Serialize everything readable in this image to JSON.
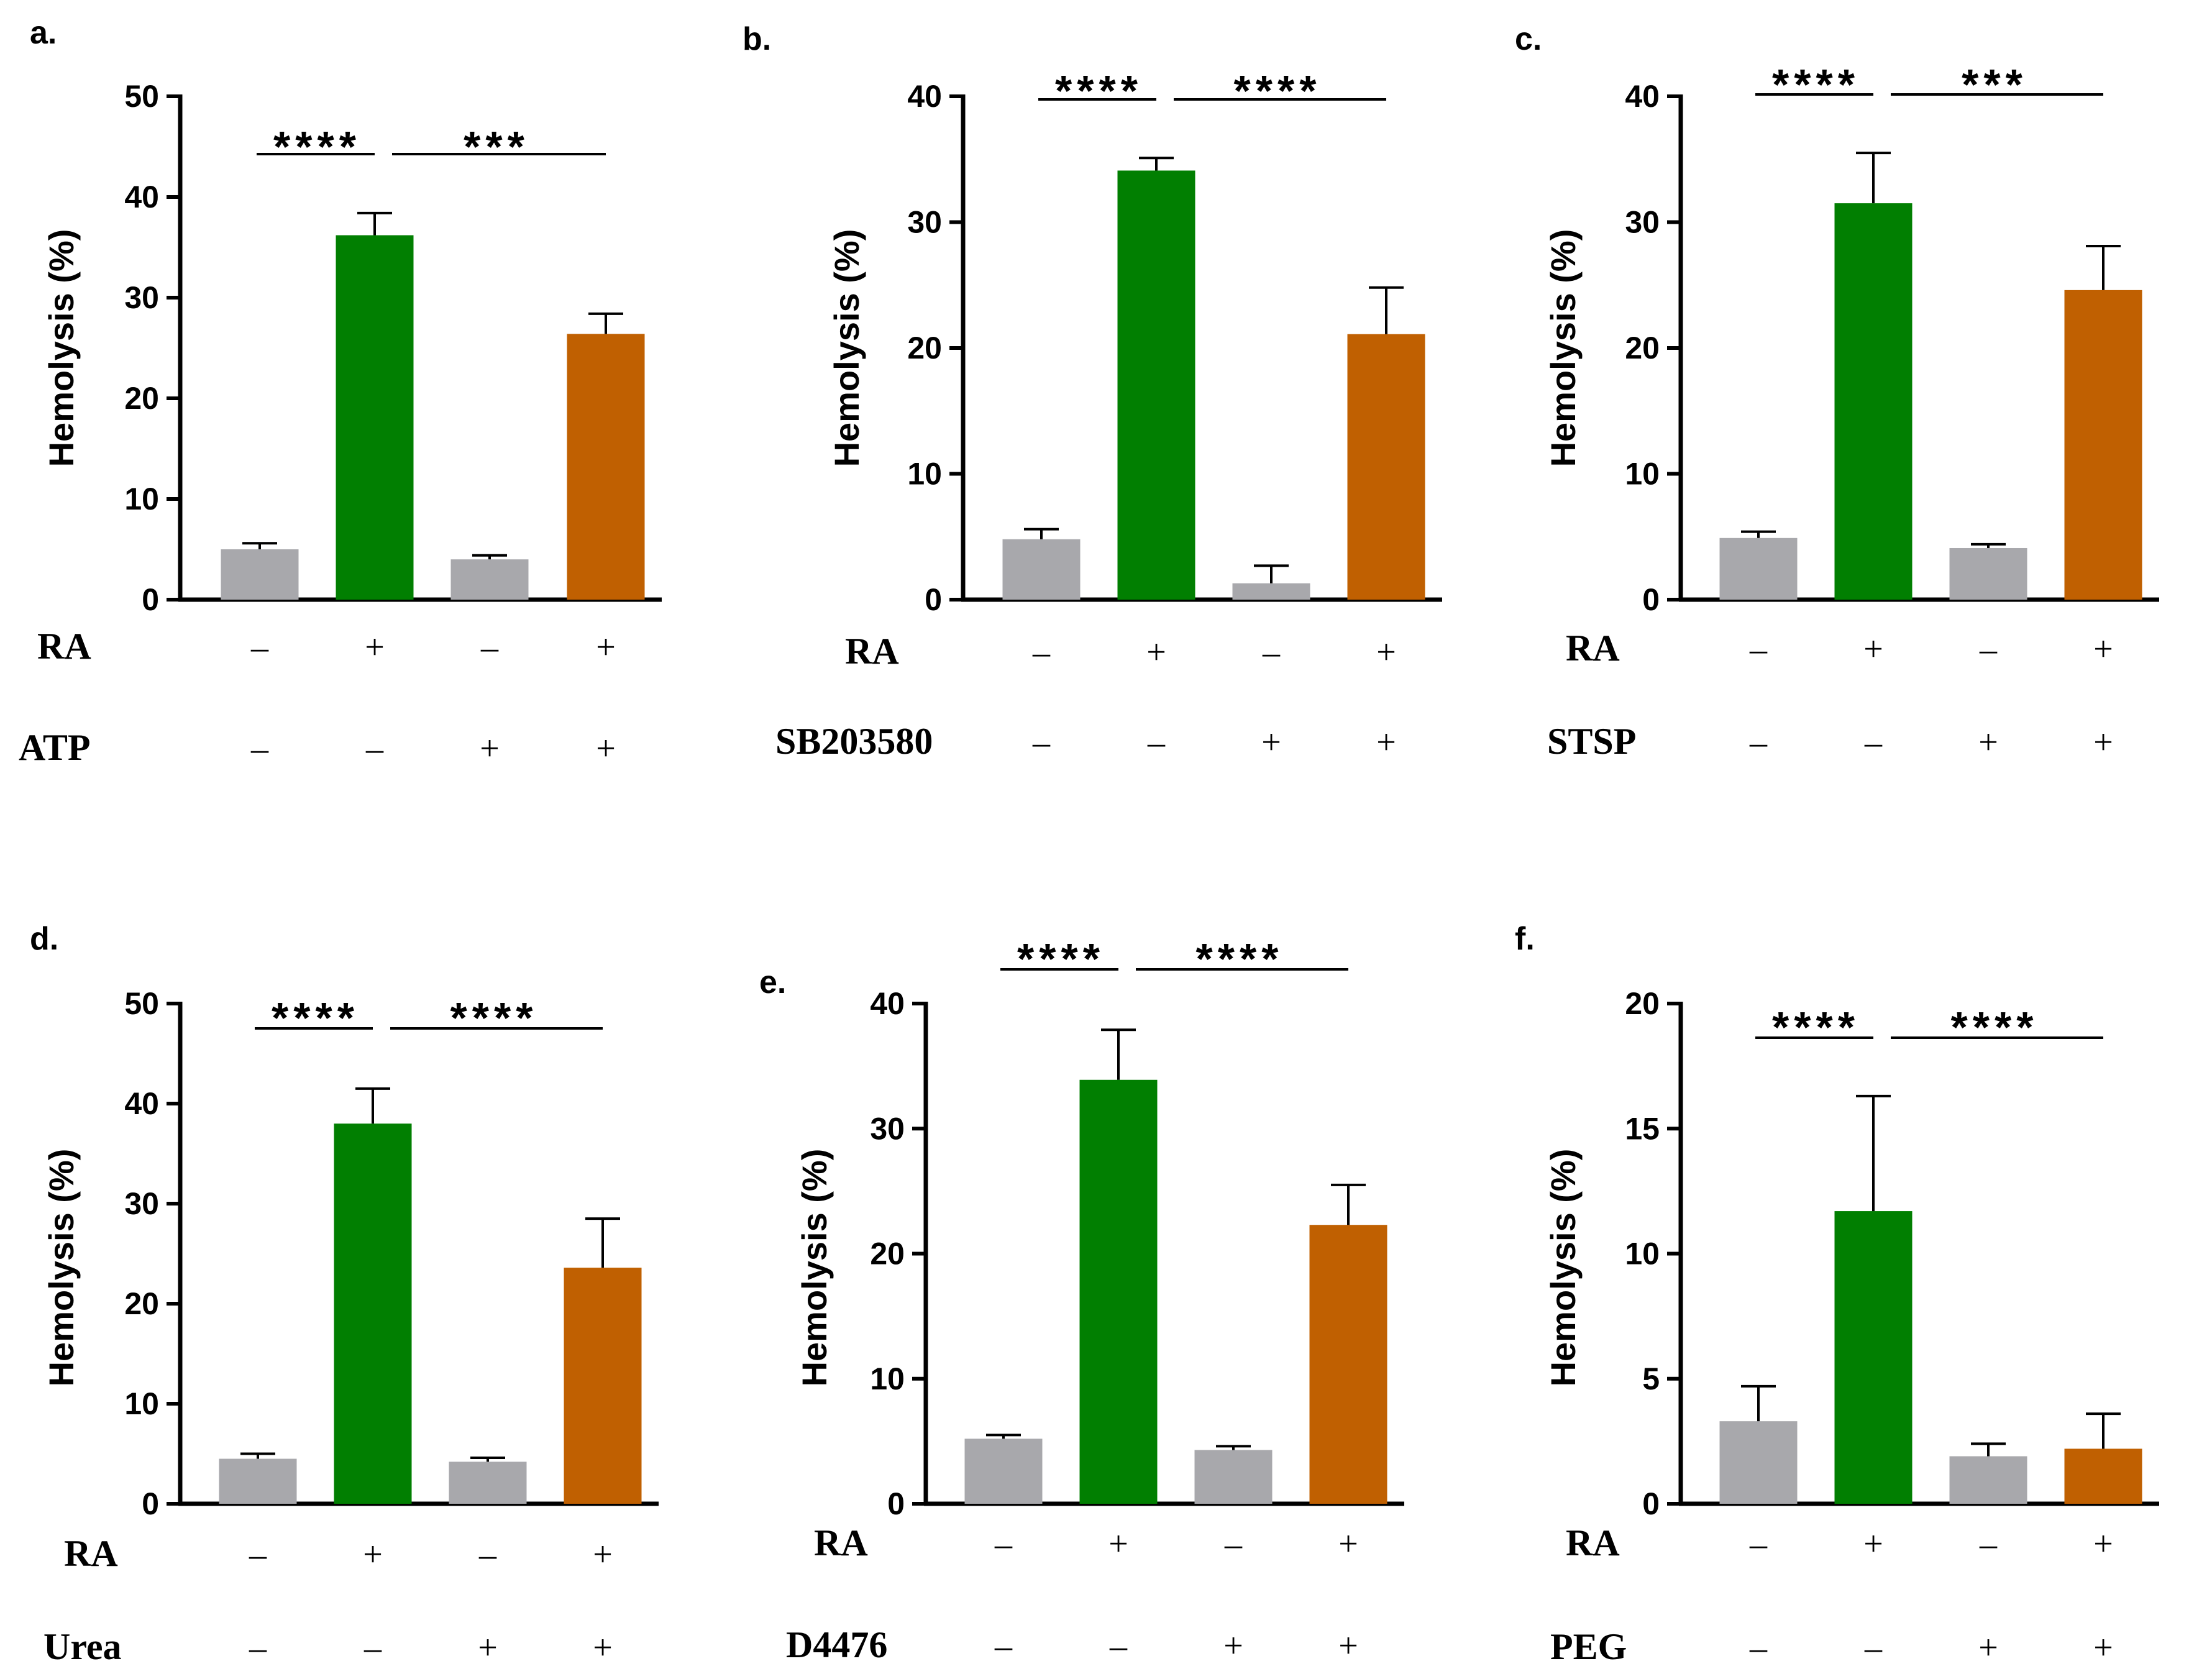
{
  "colors": {
    "gray": "#A8A8AC",
    "green": "#017F01",
    "orange": "#C06001",
    "axis": "#000000"
  },
  "ylabel": "Hemolysis (%)",
  "row1_label": "RA",
  "chart_data": [
    {
      "panel": "a.",
      "type": "bar",
      "ylim": [
        0,
        50
      ],
      "yticks": [
        "0",
        "10",
        "20",
        "30",
        "40",
        "50"
      ],
      "values": [
        5.0,
        36.2,
        4.0,
        26.4
      ],
      "errors": [
        0.6,
        2.2,
        0.4,
        2.0
      ],
      "row1": [
        "–",
        "+",
        "–",
        "+"
      ],
      "row2_label": "ATP",
      "row2": [
        "–",
        "–",
        "+",
        "+"
      ],
      "sig_left": "****",
      "sig_right": "***"
    },
    {
      "panel": "b.",
      "type": "bar",
      "ylim": [
        0,
        40
      ],
      "yticks": [
        "0",
        "10",
        "20",
        "30",
        "40"
      ],
      "values": [
        4.8,
        34.1,
        1.3,
        21.1
      ],
      "errors": [
        0.8,
        1.0,
        1.4,
        3.7
      ],
      "row1": [
        "–",
        "+",
        "–",
        "+"
      ],
      "row2_label": "SB203580",
      "row2": [
        "–",
        "–",
        "+",
        "+"
      ],
      "sig_left": "****",
      "sig_right": "****"
    },
    {
      "panel": "c.",
      "type": "bar",
      "ylim": [
        0,
        40
      ],
      "yticks": [
        "0",
        "10",
        "20",
        "30",
        "40"
      ],
      "values": [
        4.9,
        31.5,
        4.1,
        24.6
      ],
      "errors": [
        0.5,
        4.0,
        0.3,
        3.5
      ],
      "row1": [
        "–",
        "+",
        "–",
        "+"
      ],
      "row2_label": "STSP",
      "row2": [
        "–",
        "–",
        "+",
        "+"
      ],
      "sig_left": "****",
      "sig_right": "***"
    },
    {
      "panel": "d.",
      "type": "bar",
      "ylim": [
        0,
        50
      ],
      "yticks": [
        "0",
        "10",
        "20",
        "30",
        "40",
        "50"
      ],
      "values": [
        4.5,
        38.0,
        4.2,
        23.6
      ],
      "errors": [
        0.5,
        3.5,
        0.4,
        4.9
      ],
      "row1": [
        "–",
        "+",
        "–",
        "+"
      ],
      "row2_label": "Urea",
      "row2": [
        "–",
        "–",
        "+",
        "+"
      ],
      "sig_left": "****",
      "sig_right": "****"
    },
    {
      "panel": "e.",
      "type": "bar",
      "ylim": [
        0,
        40
      ],
      "yticks": [
        "0",
        "10",
        "20",
        "30",
        "40"
      ],
      "values": [
        5.2,
        33.9,
        4.3,
        22.3
      ],
      "errors": [
        0.3,
        4.0,
        0.3,
        3.2
      ],
      "row1": [
        "–",
        "+",
        "–",
        "+"
      ],
      "row2_label": "D4476",
      "row2": [
        "–",
        "–",
        "+",
        "+"
      ],
      "sig_left": "****",
      "sig_right": "****"
    },
    {
      "panel": "f.",
      "type": "bar",
      "ylim": [
        0,
        20
      ],
      "yticks": [
        "0",
        "5",
        "10",
        "15",
        "20"
      ],
      "values": [
        3.3,
        11.7,
        1.9,
        2.2
      ],
      "errors": [
        1.4,
        4.6,
        0.5,
        1.4
      ],
      "row1": [
        "–",
        "+",
        "–",
        "+"
      ],
      "row2_label": "PEG",
      "row2": [
        "–",
        "–",
        "+",
        "+"
      ],
      "sig_left": "****",
      "sig_right": "****"
    }
  ]
}
